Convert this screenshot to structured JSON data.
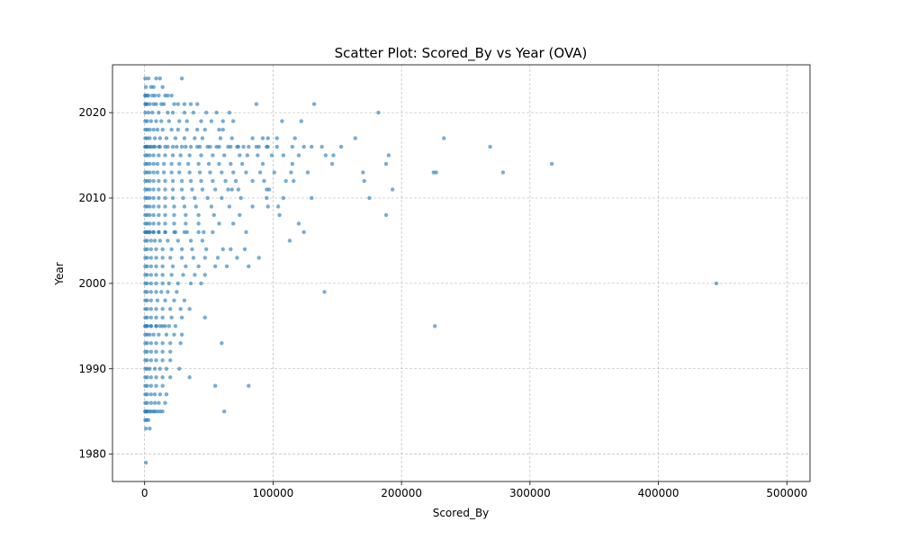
{
  "chart_data": {
    "type": "scatter",
    "title": "Scatter Plot: Scored_By vs Year (OVA)",
    "xlabel": "Scored_By",
    "ylabel": "Year",
    "xlim": [
      -25000,
      518000
    ],
    "ylim": [
      1976.8,
      2025.6
    ],
    "xticks": [
      0,
      100000,
      200000,
      300000,
      400000,
      500000
    ],
    "xtick_labels": [
      "0",
      "100000",
      "200000",
      "300000",
      "400000",
      "500000"
    ],
    "yticks": [
      1980,
      1990,
      2000,
      2010,
      2020
    ],
    "ytick_labels": [
      "1980",
      "1990",
      "2000",
      "2010",
      "2020"
    ],
    "grid": true,
    "color": "#1f77b4",
    "opacity": 0.6,
    "series": [
      {
        "x": [
          500,
          3000,
          9000,
          12000,
          29000,
          1000,
          5000,
          7000,
          14000,
          500,
          2000,
          6000,
          11000,
          18000,
          500,
          3000,
          8000,
          16000,
          21000,
          1000,
          4000,
          9000,
          13000,
          23000,
          31000,
          500,
          2000,
          7000,
          15000,
          26000,
          36000,
          41000,
          87000,
          132000,
          500,
          3000,
          6000,
          11000,
          18000,
          22000,
          31000,
          38000,
          48000,
          56000,
          66000,
          182000,
          500,
          2000,
          5000,
          9000,
          13000,
          19000,
          27000,
          33000,
          44000,
          52000,
          61000,
          69000,
          107000,
          122000,
          500,
          2000,
          4000,
          7000,
          10000,
          14000,
          21000,
          26000,
          33000,
          41000,
          47000,
          58000,
          61000,
          500,
          2000,
          4000,
          8000,
          12000,
          17000,
          24000,
          31000,
          39000,
          45000,
          59000,
          68000,
          84000,
          92000,
          96000,
          103000,
          117000,
          164000,
          233000,
          500,
          2000,
          5000,
          8000,
          12000,
          18000,
          25000,
          32000,
          41000,
          49000,
          56000,
          67000,
          73000,
          81000,
          89000,
          95000,
          115000,
          130000,
          500,
          2000,
          4000,
          7000,
          11000,
          16000,
          22000,
          29000,
          36000,
          43000,
          51000,
          58000,
          65000,
          72000,
          77000,
          87000,
          96000,
          103000,
          124000,
          138000,
          153000,
          269000,
          500,
          2000,
          4000,
          7000,
          11000,
          16000,
          22000,
          28000,
          35000,
          44000,
          53000,
          62000,
          74000,
          80000,
          88000,
          99000,
          108000,
          120000,
          141000,
          147000,
          190000,
          500,
          2000,
          4000,
          7000,
          10000,
          15000,
          21000,
          27000,
          34000,
          42000,
          50000,
          58000,
          67000,
          76000,
          92000,
          115000,
          146000,
          188000,
          317000,
          500,
          2000,
          4000,
          7000,
          10000,
          15000,
          21000,
          27000,
          35000,
          43000,
          51000,
          60000,
          69000,
          79000,
          90000,
          101000,
          114000,
          127000,
          170000,
          225000,
          227000,
          279000,
          500,
          2000,
          4000,
          7000,
          11000,
          16000,
          22000,
          29000,
          36000,
          44000,
          53000,
          63000,
          71000,
          84000,
          93000,
          110000,
          116000,
          171000,
          500,
          2000,
          4000,
          7000,
          11000,
          16000,
          22000,
          29000,
          37000,
          45000,
          55000,
          65000,
          68000,
          73000,
          95000,
          97000,
          193000,
          500,
          2000,
          4000,
          7000,
          11000,
          16000,
          22000,
          30000,
          39000,
          49000,
          60000,
          75000,
          95000,
          108000,
          130000,
          175000,
          500,
          2000,
          4000,
          7000,
          11000,
          16000,
          23000,
          31000,
          40000,
          52000,
          66000,
          84000,
          96000,
          104000,
          500,
          2000,
          4000,
          7000,
          11000,
          16000,
          23000,
          32000,
          42000,
          54000,
          74000,
          105000,
          188000,
          500,
          2000,
          4000,
          7000,
          11000,
          16000,
          23000,
          32000,
          42000,
          58000,
          69000,
          120000,
          500,
          2000,
          4000,
          7000,
          11000,
          16000,
          24000,
          33000,
          46000,
          500,
          2000,
          5000,
          8000,
          12000,
          18000,
          26000,
          36000,
          45000,
          113000,
          500,
          2000,
          4000,
          7000,
          11000,
          16000,
          23000,
          31000,
          42000,
          53000,
          79000,
          124000,
          500,
          2000,
          5000,
          9000,
          14000,
          21000,
          29000,
          37000,
          48000,
          61000,
          67000,
          78000,
          500,
          2000,
          5000,
          9000,
          14000,
          20000,
          29000,
          38000,
          47000,
          57000,
          72000,
          89000,
          500,
          2000,
          5000,
          9000,
          14000,
          22000,
          32000,
          42000,
          55000,
          64000,
          81000,
          500,
          2000,
          5000,
          9000,
          14000,
          21000,
          30000,
          39000,
          47000,
          500,
          2000,
          5000,
          9000,
          14000,
          19000,
          26000,
          36000,
          44000,
          445000,
          500,
          2000,
          5000,
          9000,
          13000,
          18000,
          25000,
          140000,
          500,
          2000,
          5000,
          10000,
          16000,
          23000,
          31000,
          500,
          2000,
          5000,
          9000,
          14000,
          20000,
          28000,
          35000,
          500,
          2000,
          5000,
          9000,
          14000,
          21000,
          29000,
          47000,
          500,
          2000,
          5000,
          9000,
          12000,
          16000,
          24000,
          500,
          2000,
          4000,
          7000,
          11000,
          17000,
          23000,
          29000,
          500,
          2000,
          5000,
          9000,
          14000,
          20000,
          28000,
          60000,
          500,
          2000,
          5000,
          9000,
          14000,
          19000,
          226000,
          500,
          2000,
          5000,
          9000,
          14000,
          20000,
          500,
          2000,
          5000,
          9000,
          14000,
          20000,
          500,
          2000,
          4000,
          8000,
          12000,
          17000,
          27000,
          500,
          2000,
          5000,
          9000,
          14000,
          20000,
          35000,
          500,
          2000,
          5000,
          8000,
          12000,
          17000,
          500,
          2000,
          5000,
          9000,
          14000,
          55000,
          81000,
          500,
          2000,
          5000,
          8000,
          11000,
          16000,
          500,
          2000,
          4000,
          7000,
          10000,
          14000,
          500,
          2000,
          5000,
          8000,
          12000,
          62000,
          500,
          1500,
          3000,
          1000,
          4000,
          1000
        ],
        "y": [
          2024,
          2024,
          2024,
          2024,
          2024,
          2023,
          2023,
          2023,
          2023,
          2022,
          2022,
          2022,
          2022,
          2022,
          2022,
          2022,
          2022,
          2022,
          2022,
          2021,
          2021,
          2021,
          2021,
          2021,
          2021,
          2021,
          2021,
          2021,
          2021,
          2021,
          2021,
          2021,
          2021,
          2021,
          2020,
          2020,
          2020,
          2020,
          2020,
          2020,
          2020,
          2020,
          2020,
          2020,
          2020,
          2020,
          2019,
          2019,
          2019,
          2019,
          2019,
          2019,
          2019,
          2019,
          2019,
          2019,
          2019,
          2019,
          2019,
          2019,
          2018,
          2018,
          2018,
          2018,
          2018,
          2018,
          2018,
          2018,
          2018,
          2018,
          2018,
          2018,
          2018,
          2017,
          2017,
          2017,
          2017,
          2017,
          2017,
          2017,
          2017,
          2017,
          2017,
          2017,
          2017,
          2017,
          2017,
          2017,
          2017,
          2017,
          2017,
          2017,
          2016,
          2016,
          2016,
          2016,
          2016,
          2016,
          2016,
          2016,
          2016,
          2016,
          2016,
          2016,
          2016,
          2016,
          2016,
          2016,
          2016,
          2016,
          2016,
          2016,
          2016,
          2016,
          2016,
          2016,
          2016,
          2016,
          2016,
          2016,
          2016,
          2016,
          2016,
          2016,
          2016,
          2016,
          2016,
          2016,
          2016,
          2016,
          2016,
          2016,
          2015,
          2015,
          2015,
          2015,
          2015,
          2015,
          2015,
          2015,
          2015,
          2015,
          2015,
          2015,
          2015,
          2015,
          2015,
          2015,
          2015,
          2015,
          2015,
          2015,
          2015,
          2014,
          2014,
          2014,
          2014,
          2014,
          2014,
          2014,
          2014,
          2014,
          2014,
          2014,
          2014,
          2014,
          2014,
          2014,
          2014,
          2014,
          2014,
          2014,
          2013,
          2013,
          2013,
          2013,
          2013,
          2013,
          2013,
          2013,
          2013,
          2013,
          2013,
          2013,
          2013,
          2013,
          2013,
          2013,
          2013,
          2013,
          2013,
          2013,
          2013,
          2013,
          2012,
          2012,
          2012,
          2012,
          2012,
          2012,
          2012,
          2012,
          2012,
          2012,
          2012,
          2012,
          2012,
          2012,
          2012,
          2012,
          2012,
          2012,
          2011,
          2011,
          2011,
          2011,
          2011,
          2011,
          2011,
          2011,
          2011,
          2011,
          2011,
          2011,
          2011,
          2011,
          2011,
          2011,
          2011,
          2010,
          2010,
          2010,
          2010,
          2010,
          2010,
          2010,
          2010,
          2010,
          2010,
          2010,
          2010,
          2010,
          2010,
          2010,
          2010,
          2009,
          2009,
          2009,
          2009,
          2009,
          2009,
          2009,
          2009,
          2009,
          2009,
          2009,
          2009,
          2009,
          2009,
          2008,
          2008,
          2008,
          2008,
          2008,
          2008,
          2008,
          2008,
          2008,
          2008,
          2008,
          2008,
          2008,
          2007,
          2007,
          2007,
          2007,
          2007,
          2007,
          2007,
          2007,
          2007,
          2007,
          2007,
          2007,
          2006,
          2006,
          2006,
          2006,
          2006,
          2006,
          2006,
          2006,
          2006,
          2005,
          2005,
          2005,
          2005,
          2005,
          2005,
          2005,
          2005,
          2005,
          2005,
          2006,
          2006,
          2006,
          2006,
          2006,
          2006,
          2006,
          2006,
          2006,
          2006,
          2006,
          2006,
          2004,
          2004,
          2004,
          2004,
          2004,
          2004,
          2004,
          2004,
          2004,
          2004,
          2004,
          2004,
          2003,
          2003,
          2003,
          2003,
          2003,
          2003,
          2003,
          2003,
          2003,
          2003,
          2003,
          2003,
          2002,
          2002,
          2002,
          2002,
          2002,
          2002,
          2002,
          2002,
          2002,
          2002,
          2002,
          2001,
          2001,
          2001,
          2001,
          2001,
          2001,
          2001,
          2001,
          2001,
          2000,
          2000,
          2000,
          2000,
          2000,
          2000,
          2000,
          2000,
          2000,
          2000,
          1999,
          1999,
          1999,
          1999,
          1999,
          1999,
          1999,
          1999,
          1998,
          1998,
          1998,
          1998,
          1998,
          1998,
          1998,
          1997,
          1997,
          1997,
          1997,
          1997,
          1997,
          1997,
          1997,
          1996,
          1996,
          1996,
          1996,
          1996,
          1996,
          1996,
          1996,
          1995,
          1995,
          1995,
          1995,
          1995,
          1995,
          1995,
          1994,
          1994,
          1994,
          1994,
          1994,
          1994,
          1994,
          1994,
          1993,
          1993,
          1993,
          1993,
          1993,
          1993,
          1993,
          1993,
          1995,
          1995,
          1995,
          1995,
          1995,
          1995,
          1995,
          1992,
          1992,
          1992,
          1992,
          1992,
          1992,
          1991,
          1991,
          1991,
          1991,
          1991,
          1991,
          1990,
          1990,
          1990,
          1990,
          1990,
          1990,
          1990,
          1989,
          1989,
          1989,
          1989,
          1989,
          1989,
          1989,
          1987,
          1987,
          1987,
          1987,
          1987,
          1987,
          1988,
          1988,
          1988,
          1988,
          1988,
          1988,
          1988,
          1986,
          1986,
          1986,
          1986,
          1986,
          1986,
          1985,
          1985,
          1985,
          1985,
          1985,
          1985,
          1985,
          1985,
          1985,
          1985,
          1985,
          1985,
          1984,
          1984,
          1984,
          1983,
          1983,
          1979
        ]
      }
    ]
  }
}
